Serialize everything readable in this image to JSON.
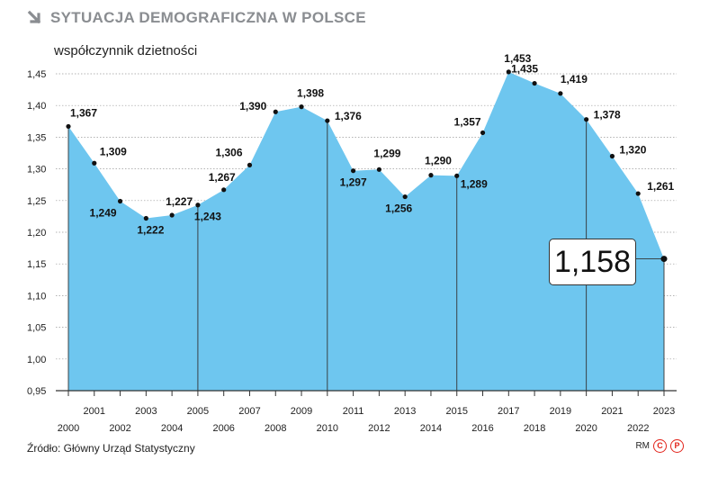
{
  "header": {
    "title": "SYTUACJA DEMOGRAFICZNA W POLSCE",
    "icon": "arrow-down-right-icon"
  },
  "footer": {
    "source": "Źródło: Główny Urząd Statystyczny",
    "credit": "RM"
  },
  "colors": {
    "area": "#6ec6ef",
    "line": "#333333",
    "title": "#8a8d91"
  },
  "chart_data": {
    "type": "area",
    "title": "SYTUACJA DEMOGRAFICZNA W POLSCE",
    "ylabel": "współczynnik dzietności",
    "xlabel": "",
    "ylim": [
      0.95,
      1.45
    ],
    "yticks": [
      0.95,
      1.0,
      1.05,
      1.1,
      1.15,
      1.2,
      1.25,
      1.3,
      1.35,
      1.4,
      1.45
    ],
    "ytick_labels": [
      "0,95",
      "1,00",
      "1,05",
      "1,10",
      "1,15",
      "1,20",
      "1,25",
      "1,30",
      "1,35",
      "1,40",
      "1,45"
    ],
    "grid": true,
    "x": [
      "2000",
      "2001",
      "2002",
      "2003",
      "2004",
      "2005",
      "2006",
      "2007",
      "2008",
      "2009",
      "2010",
      "2011",
      "2012",
      "2013",
      "2014",
      "2015",
      "2016",
      "2017",
      "2018",
      "2019",
      "2020",
      "2021",
      "2022",
      "2023"
    ],
    "values": [
      1.367,
      1.309,
      1.249,
      1.222,
      1.227,
      1.243,
      1.267,
      1.306,
      1.39,
      1.398,
      1.376,
      1.297,
      1.299,
      1.256,
      1.29,
      1.289,
      1.357,
      1.453,
      1.435,
      1.419,
      1.378,
      1.32,
      1.261,
      1.158
    ],
    "labels": [
      "1,367",
      "1,309",
      "1,249",
      "1,222",
      "1,227",
      "1,243",
      "1,267",
      "1,306",
      "1,390",
      "1,398",
      "1,376",
      "1,297",
      "1,299",
      "1,256",
      "1,290",
      "1,289",
      "1,357",
      "1,453",
      "1,435",
      "1,419",
      "1,378",
      "1,320",
      "1,261",
      "1,158"
    ],
    "highlight": "1,158",
    "reference_years": [
      "2000",
      "2005",
      "2010",
      "2015",
      "2020",
      "2023"
    ]
  }
}
